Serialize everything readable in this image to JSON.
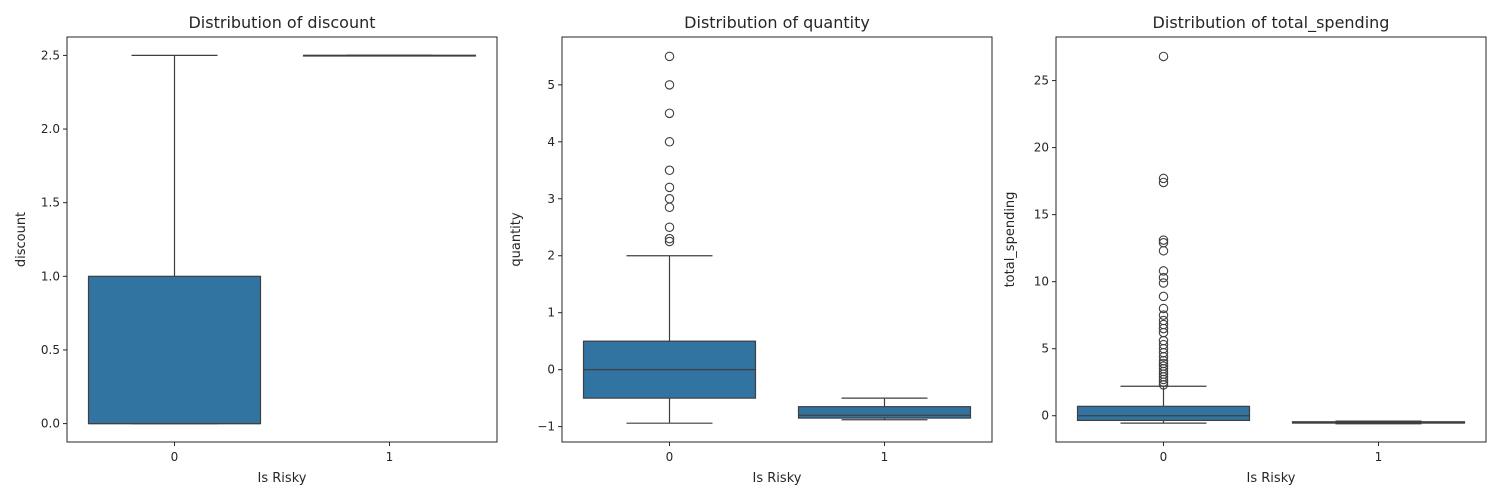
{
  "chart_data": [
    {
      "type": "box",
      "title": "Distribution of discount",
      "xlabel": "Is Risky",
      "ylabel": "discount",
      "categories": [
        "0",
        "1"
      ],
      "ylim": [
        -0.125,
        2.625
      ],
      "yticks": [
        "0.0",
        "0.5",
        "1.0",
        "1.5",
        "2.0",
        "2.5"
      ],
      "box_color": "#3274a1",
      "boxes": [
        {
          "category": "0",
          "whislo": 0.0,
          "q1": 0.0,
          "med": 0.0,
          "q3": 1.0,
          "whishi": 2.5,
          "fliers": []
        },
        {
          "category": "1",
          "whislo": 2.5,
          "q1": 2.5,
          "med": 2.5,
          "q3": 2.5,
          "whishi": 2.5,
          "fliers": []
        }
      ]
    },
    {
      "type": "box",
      "title": "Distribution of quantity",
      "xlabel": "Is Risky",
      "ylabel": "quantity",
      "categories": [
        "0",
        "1"
      ],
      "ylim": [
        -1.27,
        5.84
      ],
      "yticks": [
        "−1",
        "0",
        "1",
        "2",
        "3",
        "4",
        "5"
      ],
      "box_color": "#3274a1",
      "boxes": [
        {
          "category": "0",
          "whislo": -0.94,
          "q1": -0.5,
          "med": 0.0,
          "q3": 0.5,
          "whishi": 2.0,
          "fliers": [
            2.25,
            2.3,
            2.5,
            2.85,
            3.0,
            3.2,
            3.5,
            4.0,
            4.5,
            5.0,
            5.5
          ]
        },
        {
          "category": "1",
          "whislo": -0.88,
          "q1": -0.85,
          "med": -0.8,
          "q3": -0.65,
          "whishi": -0.5,
          "fliers": []
        }
      ]
    },
    {
      "type": "box",
      "title": "Distribution of total_spending",
      "xlabel": "Is Risky",
      "ylabel": "total_spending",
      "categories": [
        "0",
        "1"
      ],
      "ylim": [
        -1.96,
        28.25
      ],
      "yticks": [
        "0",
        "5",
        "10",
        "15",
        "20",
        "25"
      ],
      "box_color": "#3274a1",
      "boxes": [
        {
          "category": "0",
          "whislo": -0.55,
          "q1": -0.35,
          "med": 0.0,
          "q3": 0.7,
          "whishi": 2.2,
          "fliers": [
            2.3,
            2.5,
            2.7,
            2.9,
            3.1,
            3.3,
            3.5,
            3.7,
            3.9,
            4.1,
            4.4,
            4.7,
            5.0,
            5.3,
            5.6,
            6.2,
            6.5,
            6.8,
            7.1,
            7.5,
            8.0,
            8.9,
            9.9,
            10.3,
            10.8,
            12.3,
            12.9,
            13.1,
            17.4,
            17.7,
            26.8
          ]
        },
        {
          "category": "1",
          "whislo": -0.6,
          "q1": -0.55,
          "med": -0.52,
          "q3": -0.45,
          "whishi": -0.4,
          "fliers": []
        }
      ]
    }
  ]
}
